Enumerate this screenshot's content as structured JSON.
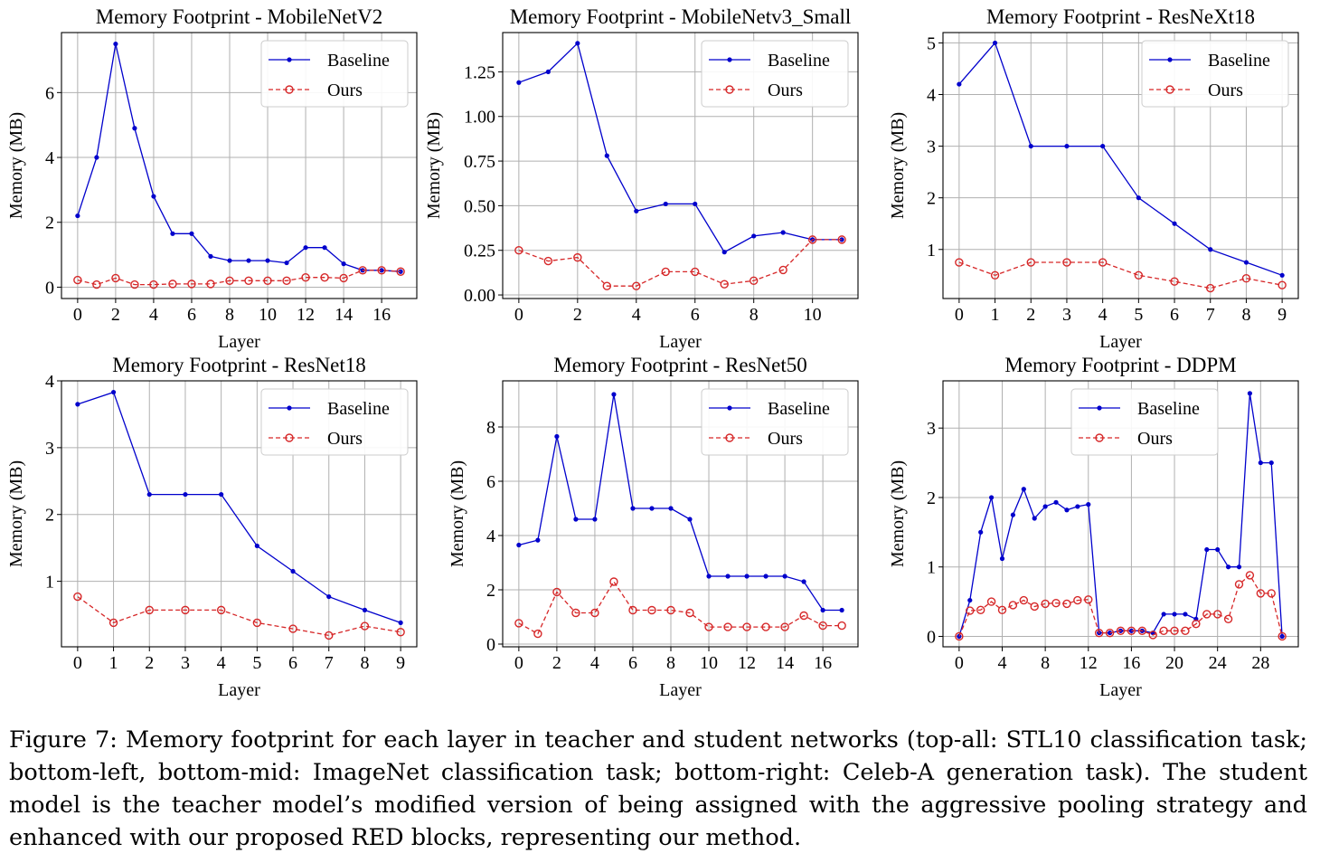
{
  "chart_data": [
    {
      "type": "line",
      "title": "Memory Footprint - MobileNetV2",
      "xlabel": "Layer",
      "ylabel": "Memory (MB)",
      "xlim": [
        -0.85,
        17.85
      ],
      "ylim": [
        -0.35,
        7.85
      ],
      "xticks": [
        0,
        2,
        4,
        6,
        8,
        10,
        12,
        14,
        16
      ],
      "yticks": [
        0,
        2,
        4,
        6
      ],
      "ytick_labels": [
        "0",
        "2",
        "4",
        "6"
      ],
      "grid": true,
      "legend_position": "upper right",
      "x": [
        0,
        1,
        2,
        3,
        4,
        5,
        6,
        7,
        8,
        9,
        10,
        11,
        12,
        13,
        14,
        15,
        16,
        17
      ],
      "series": [
        {
          "name": "Baseline",
          "color": "#0000cc",
          "style": "solid-dot",
          "values": [
            2.2,
            4.0,
            7.5,
            4.9,
            2.8,
            1.65,
            1.65,
            0.95,
            0.82,
            0.82,
            0.82,
            0.75,
            1.22,
            1.22,
            0.72,
            0.52,
            0.52,
            0.48
          ]
        },
        {
          "name": "Ours",
          "color": "#d62728",
          "style": "dashed-circle",
          "values": [
            0.22,
            0.08,
            0.28,
            0.08,
            0.08,
            0.1,
            0.1,
            0.1,
            0.2,
            0.2,
            0.2,
            0.2,
            0.3,
            0.3,
            0.28,
            0.52,
            0.52,
            0.48
          ]
        }
      ]
    },
    {
      "type": "line",
      "title": "Memory Footprint - MobileNetv3_Small",
      "xlabel": "Layer",
      "ylabel": "Memory (MB)",
      "xlim": [
        -0.55,
        11.55
      ],
      "ylim": [
        -0.02,
        1.47
      ],
      "xticks": [
        0,
        2,
        4,
        6,
        8,
        10
      ],
      "yticks": [
        0,
        0.25,
        0.5,
        0.75,
        1.0,
        1.25
      ],
      "ytick_labels": [
        "0.00",
        "0.25",
        "0.50",
        "0.75",
        "1.00",
        "1.25"
      ],
      "grid": true,
      "legend_position": "upper right",
      "x": [
        0,
        1,
        2,
        3,
        4,
        5,
        6,
        7,
        8,
        9,
        10,
        11
      ],
      "series": [
        {
          "name": "Baseline",
          "color": "#0000cc",
          "style": "solid-dot",
          "values": [
            1.19,
            1.25,
            1.41,
            0.78,
            0.47,
            0.51,
            0.51,
            0.24,
            0.33,
            0.35,
            0.31,
            0.31
          ]
        },
        {
          "name": "Ours",
          "color": "#d62728",
          "style": "dashed-circle",
          "values": [
            0.25,
            0.19,
            0.21,
            0.05,
            0.05,
            0.13,
            0.13,
            0.06,
            0.08,
            0.14,
            0.31,
            0.31
          ]
        }
      ]
    },
    {
      "type": "line",
      "title": "Memory Footprint - ResNeXt18",
      "xlabel": "Layer",
      "ylabel": "Memory (MB)",
      "xlim": [
        -0.45,
        9.45
      ],
      "ylim": [
        0.05,
        5.2
      ],
      "xticks": [
        0,
        1,
        2,
        3,
        4,
        5,
        6,
        7,
        8,
        9
      ],
      "yticks": [
        1,
        2,
        3,
        4,
        5
      ],
      "ytick_labels": [
        "1",
        "2",
        "3",
        "4",
        "5"
      ],
      "grid": true,
      "legend_position": "upper right",
      "x": [
        0,
        1,
        2,
        3,
        4,
        5,
        6,
        7,
        8,
        9
      ],
      "series": [
        {
          "name": "Baseline",
          "color": "#0000cc",
          "style": "solid-dot",
          "values": [
            4.2,
            5.0,
            3.0,
            3.0,
            3.0,
            2.0,
            1.5,
            1.0,
            0.75,
            0.5
          ]
        },
        {
          "name": "Ours",
          "color": "#d62728",
          "style": "dashed-circle",
          "values": [
            0.75,
            0.5,
            0.75,
            0.75,
            0.75,
            0.5,
            0.38,
            0.25,
            0.44,
            0.31
          ]
        }
      ]
    },
    {
      "type": "line",
      "title": "Memory Footprint - ResNet18",
      "xlabel": "Layer",
      "ylabel": "Memory (MB)",
      "xlim": [
        -0.45,
        9.45
      ],
      "ylim": [
        0.02,
        4.0
      ],
      "xticks": [
        0,
        1,
        2,
        3,
        4,
        5,
        6,
        7,
        8,
        9
      ],
      "yticks": [
        1,
        2,
        3,
        4
      ],
      "ytick_labels": [
        "1",
        "2",
        "3",
        "4"
      ],
      "grid": true,
      "legend_position": "upper right",
      "x": [
        0,
        1,
        2,
        3,
        4,
        5,
        6,
        7,
        8,
        9
      ],
      "series": [
        {
          "name": "Baseline",
          "color": "#0000cc",
          "style": "solid-dot",
          "values": [
            3.65,
            3.83,
            2.3,
            2.3,
            2.3,
            1.53,
            1.15,
            0.77,
            0.57,
            0.38
          ]
        },
        {
          "name": "Ours",
          "color": "#d62728",
          "style": "dashed-circle",
          "values": [
            0.77,
            0.38,
            0.57,
            0.57,
            0.57,
            0.38,
            0.29,
            0.19,
            0.33,
            0.24
          ]
        }
      ]
    },
    {
      "type": "line",
      "title": "Memory Footprint - ResNet50",
      "xlabel": "Layer",
      "ylabel": "Memory (MB)",
      "xlim": [
        -0.85,
        17.85
      ],
      "ylim": [
        -0.1,
        9.7
      ],
      "xticks": [
        0,
        2,
        4,
        6,
        8,
        10,
        12,
        14,
        16
      ],
      "yticks": [
        0,
        2,
        4,
        6,
        8
      ],
      "ytick_labels": [
        "0",
        "2",
        "4",
        "6",
        "8"
      ],
      "grid": true,
      "legend_position": "upper right",
      "x": [
        0,
        1,
        2,
        3,
        4,
        5,
        6,
        7,
        8,
        9,
        10,
        11,
        12,
        13,
        14,
        15,
        16,
        17
      ],
      "series": [
        {
          "name": "Baseline",
          "color": "#0000cc",
          "style": "solid-dot",
          "values": [
            3.65,
            3.83,
            7.65,
            4.6,
            4.6,
            9.2,
            5.0,
            5.0,
            5.0,
            4.6,
            2.5,
            2.5,
            2.5,
            2.5,
            2.5,
            2.3,
            1.25,
            1.25
          ]
        },
        {
          "name": "Ours",
          "color": "#d62728",
          "style": "dashed-circle",
          "values": [
            0.77,
            0.38,
            1.92,
            1.15,
            1.15,
            2.3,
            1.25,
            1.25,
            1.25,
            1.15,
            0.63,
            0.63,
            0.63,
            0.63,
            0.63,
            1.05,
            0.68,
            0.68
          ]
        }
      ]
    },
    {
      "type": "line",
      "title": "Memory Footprint - DDPM",
      "xlabel": "Layer",
      "ylabel": "Memory (MB)",
      "xlim": [
        -1.5,
        31.5
      ],
      "ylim": [
        -0.15,
        3.68
      ],
      "xticks": [
        0,
        4,
        8,
        12,
        16,
        20,
        24,
        28
      ],
      "yticks": [
        0,
        1,
        2,
        3
      ],
      "ytick_labels": [
        "0",
        "1",
        "2",
        "3"
      ],
      "grid": true,
      "legend_position": "upper center",
      "x": [
        0,
        1,
        2,
        3,
        4,
        5,
        6,
        7,
        8,
        9,
        10,
        11,
        12,
        13,
        14,
        15,
        16,
        17,
        18,
        19,
        20,
        21,
        22,
        23,
        24,
        25,
        26,
        27,
        28,
        29,
        30
      ],
      "series": [
        {
          "name": "Baseline",
          "color": "#0000cc",
          "style": "solid-dot",
          "values": [
            0,
            0.52,
            1.5,
            2.0,
            1.12,
            1.75,
            2.12,
            1.7,
            1.87,
            1.93,
            1.82,
            1.87,
            1.9,
            0.05,
            0.05,
            0.08,
            0.08,
            0.08,
            0.05,
            0.32,
            0.32,
            0.32,
            0.25,
            1.25,
            1.25,
            1.0,
            1.0,
            3.5,
            2.5,
            2.5,
            0
          ]
        },
        {
          "name": "Ours",
          "color": "#d62728",
          "style": "dashed-circle",
          "values": [
            0,
            0.37,
            0.38,
            0.5,
            0.38,
            0.45,
            0.52,
            0.43,
            0.47,
            0.48,
            0.47,
            0.52,
            0.53,
            0.05,
            0.05,
            0.08,
            0.08,
            0.08,
            0.02,
            0.08,
            0.08,
            0.08,
            0.18,
            0.32,
            0.32,
            0.25,
            0.75,
            0.88,
            0.62,
            0.62,
            0
          ]
        }
      ]
    }
  ],
  "caption": "Figure 7: Memory footprint for each layer in teacher and student networks (top-all: STL10 classification task; bottom-left, bottom-mid: ImageNet classification task; bottom-right: Celeb-A generation task). The student model is the teacher model’s modified version of being assigned with the aggressive pooling strategy and enhanced with our proposed RED blocks, representing our method."
}
